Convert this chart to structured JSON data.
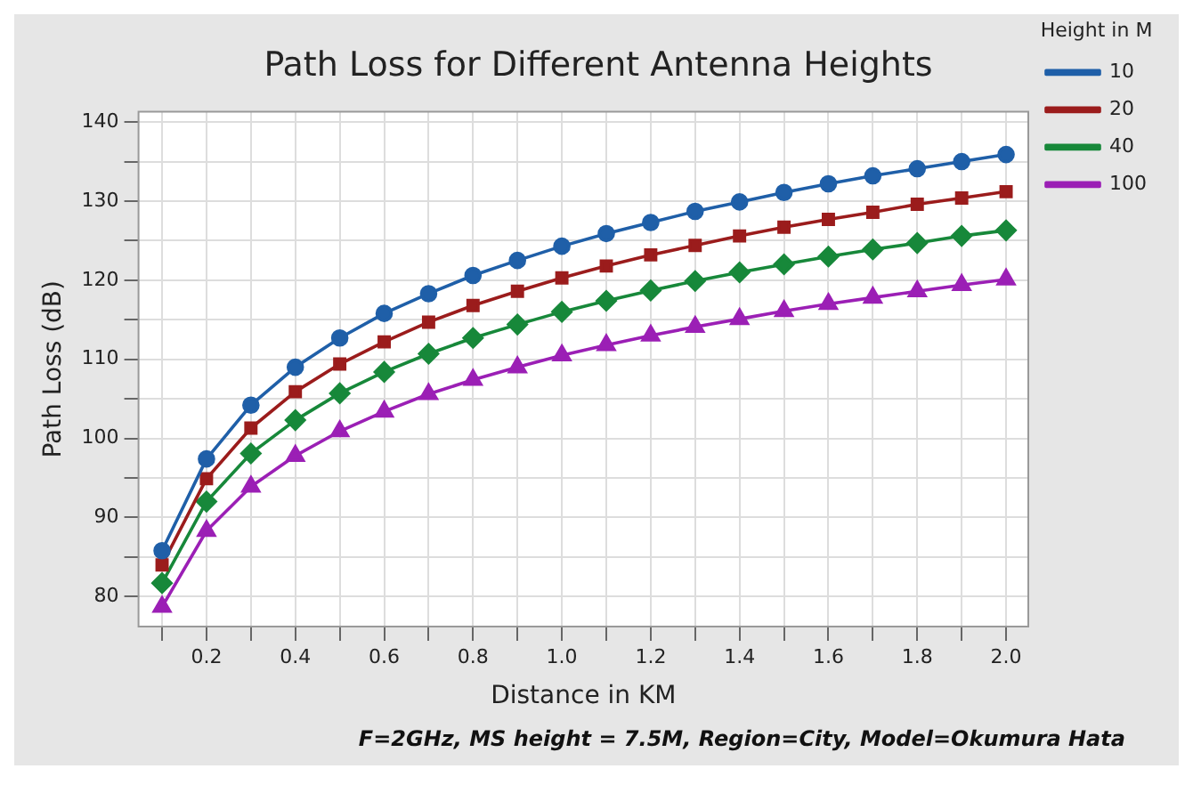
{
  "chart_data": {
    "type": "line",
    "title": "Path Loss for Different Antenna Heights",
    "xlabel": "Distance in KM",
    "ylabel": "Path Loss (dB)",
    "legend_title": "Height in M",
    "annotations": [
      "F=2GHz, MS height = 7.5M, Region=City,  Model=Okumura Hata"
    ],
    "x": [
      0.1,
      0.2,
      0.3,
      0.4,
      0.5,
      0.6,
      0.7,
      0.8,
      0.9,
      1.0,
      1.1,
      1.2,
      1.3,
      1.4,
      1.5,
      1.6,
      1.7,
      1.8,
      1.9,
      2.0
    ],
    "series": [
      {
        "name": "10",
        "color": "#1f5fa8",
        "marker": "circle",
        "values": [
          85.8,
          97.4,
          104.2,
          109.0,
          112.7,
          115.8,
          118.3,
          120.6,
          122.5,
          124.3,
          125.9,
          127.3,
          128.7,
          129.9,
          131.1,
          132.2,
          133.2,
          134.1,
          135.0,
          135.9
        ]
      },
      {
        "name": "20",
        "color": "#9b1c1c",
        "marker": "square",
        "values": [
          84.0,
          94.9,
          101.3,
          105.9,
          109.4,
          112.2,
          114.7,
          116.8,
          118.6,
          120.3,
          121.8,
          123.2,
          124.4,
          125.6,
          126.7,
          127.7,
          128.6,
          129.6,
          130.4,
          131.2
        ]
      },
      {
        "name": "40",
        "color": "#17883a",
        "marker": "diamond",
        "values": [
          81.7,
          92.0,
          98.1,
          102.3,
          105.7,
          108.4,
          110.7,
          112.7,
          114.4,
          116.0,
          117.4,
          118.7,
          119.9,
          121.0,
          122.0,
          123.0,
          123.9,
          124.7,
          125.6,
          126.3
        ]
      },
      {
        "name": "100",
        "color": "#9b1fb5",
        "marker": "triangle",
        "values": [
          78.7,
          88.3,
          93.9,
          97.8,
          100.9,
          103.4,
          105.6,
          107.4,
          109.0,
          110.5,
          111.8,
          113.0,
          114.1,
          115.1,
          116.1,
          117.0,
          117.8,
          118.6,
          119.4,
          120.1
        ]
      }
    ],
    "xlim": [
      0.047,
      2.05
    ],
    "ylim": [
      76.2,
      141.3
    ],
    "xticks": [
      {
        "value": 0.1,
        "label": null
      },
      {
        "value": 0.2,
        "label": "0.2"
      },
      {
        "value": 0.3,
        "label": null
      },
      {
        "value": 0.4,
        "label": "0.4"
      },
      {
        "value": 0.5,
        "label": null
      },
      {
        "value": 0.6,
        "label": "0.6"
      },
      {
        "value": 0.7,
        "label": null
      },
      {
        "value": 0.8,
        "label": "0.8"
      },
      {
        "value": 0.9,
        "label": null
      },
      {
        "value": 1.0,
        "label": "1.0"
      },
      {
        "value": 1.1,
        "label": null
      },
      {
        "value": 1.2,
        "label": "1.2"
      },
      {
        "value": 1.3,
        "label": null
      },
      {
        "value": 1.4,
        "label": "1.4"
      },
      {
        "value": 1.5,
        "label": null
      },
      {
        "value": 1.6,
        "label": "1.6"
      },
      {
        "value": 1.7,
        "label": null
      },
      {
        "value": 1.8,
        "label": "1.8"
      },
      {
        "value": 1.9,
        "label": null
      },
      {
        "value": 2.0,
        "label": "2.0"
      }
    ],
    "yticks": [
      80,
      {
        "value": 85,
        "label": null
      },
      90,
      {
        "value": 95,
        "label": null
      },
      100,
      {
        "value": 105,
        "label": null
      },
      110,
      {
        "value": 115,
        "label": null
      },
      120,
      {
        "value": 125,
        "label": null
      },
      130,
      {
        "value": 135,
        "label": null
      },
      140
    ],
    "grid": true,
    "legend": "right",
    "line_style": "solid"
  }
}
